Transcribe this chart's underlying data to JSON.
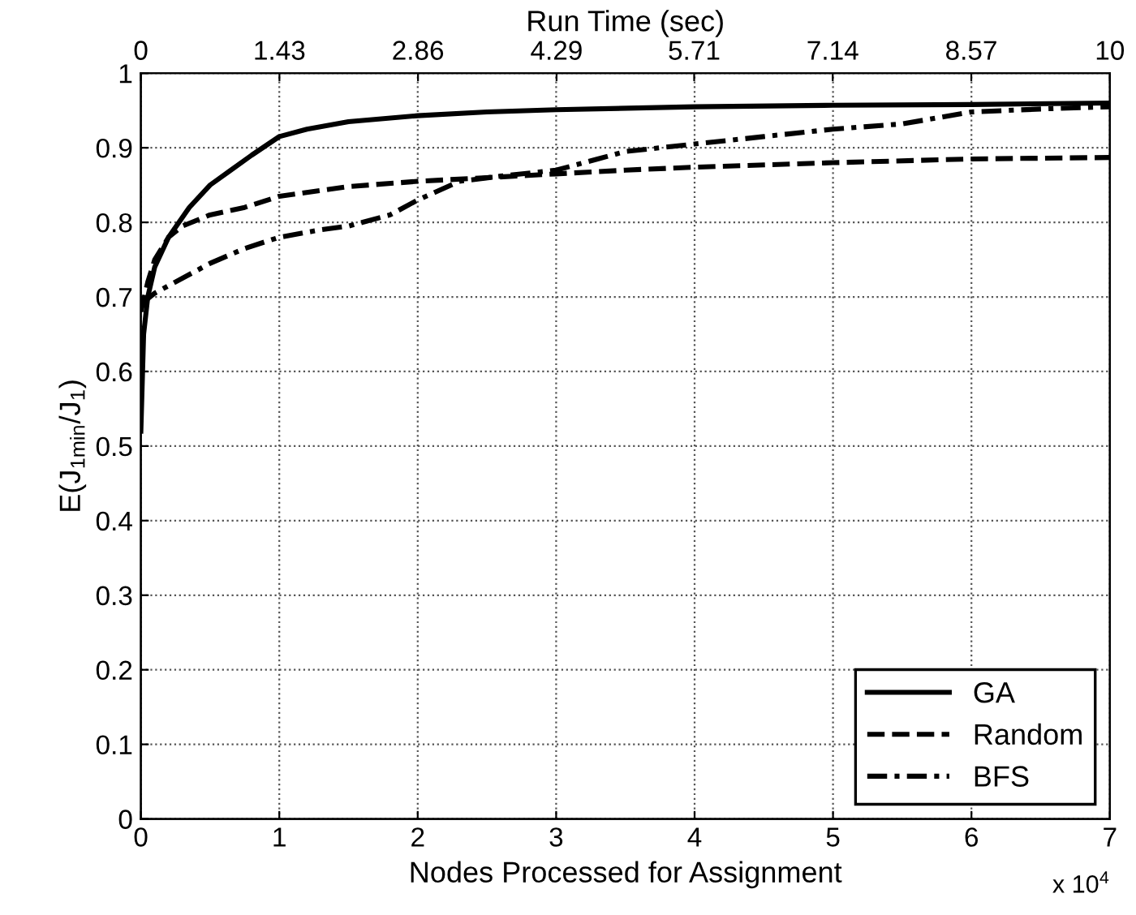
{
  "chart_data": {
    "type": "line",
    "xlabel": "Nodes Processed for Assignment",
    "ylabel": "E(J$_{1min}$/J$_{1}$)",
    "x2label": "Run Time (sec)",
    "xlim": [
      0,
      7
    ],
    "xticks": [
      0,
      1,
      2,
      3,
      4,
      5,
      6,
      7
    ],
    "ylim": [
      0,
      1
    ],
    "yticks": [
      0,
      0.1,
      0.2,
      0.3,
      0.4,
      0.5,
      0.6,
      0.7,
      0.8,
      0.9,
      1
    ],
    "x2lim": [
      0,
      10
    ],
    "x2ticks": [
      0,
      1.43,
      2.86,
      4.29,
      5.71,
      7.14,
      8.57,
      10
    ],
    "grid": true,
    "legend": "bottom right",
    "annotations": [
      "x 10$^{4}$"
    ],
    "series": [
      {
        "name": "GA",
        "color": "#000000",
        "line_style": "solid",
        "x": [
          0,
          0.02,
          0.05,
          0.1,
          0.2,
          0.35,
          0.5,
          0.65,
          0.8,
          1.0,
          1.2,
          1.5,
          2,
          2.5,
          3,
          4,
          5,
          6,
          7
        ],
        "values": [
          0.52,
          0.65,
          0.7,
          0.74,
          0.78,
          0.82,
          0.85,
          0.87,
          0.89,
          0.915,
          0.925,
          0.935,
          0.943,
          0.948,
          0.951,
          0.955,
          0.957,
          0.958,
          0.96
        ]
      },
      {
        "name": "Random",
        "color": "#000000",
        "line_style": "dashed",
        "x": [
          0,
          0.05,
          0.1,
          0.2,
          0.3,
          0.5,
          0.75,
          1,
          1.5,
          2,
          2.5,
          3,
          3.5,
          4,
          5,
          6,
          7
        ],
        "values": [
          0.68,
          0.72,
          0.75,
          0.78,
          0.795,
          0.81,
          0.82,
          0.835,
          0.848,
          0.855,
          0.86,
          0.865,
          0.87,
          0.874,
          0.88,
          0.885,
          0.887
        ]
      },
      {
        "name": "BFS",
        "color": "#000000",
        "line_style": "dashdot",
        "x": [
          0,
          0.1,
          0.2,
          0.5,
          0.75,
          1,
          1.3,
          1.5,
          1.8,
          2,
          2.3,
          2.6,
          3,
          3.3,
          3.5,
          4,
          4.5,
          5,
          5.5,
          6,
          6.5,
          7
        ],
        "values": [
          0.69,
          0.705,
          0.715,
          0.745,
          0.765,
          0.78,
          0.79,
          0.795,
          0.81,
          0.83,
          0.855,
          0.862,
          0.87,
          0.885,
          0.895,
          0.905,
          0.915,
          0.925,
          0.932,
          0.948,
          0.952,
          0.955
        ]
      }
    ]
  }
}
